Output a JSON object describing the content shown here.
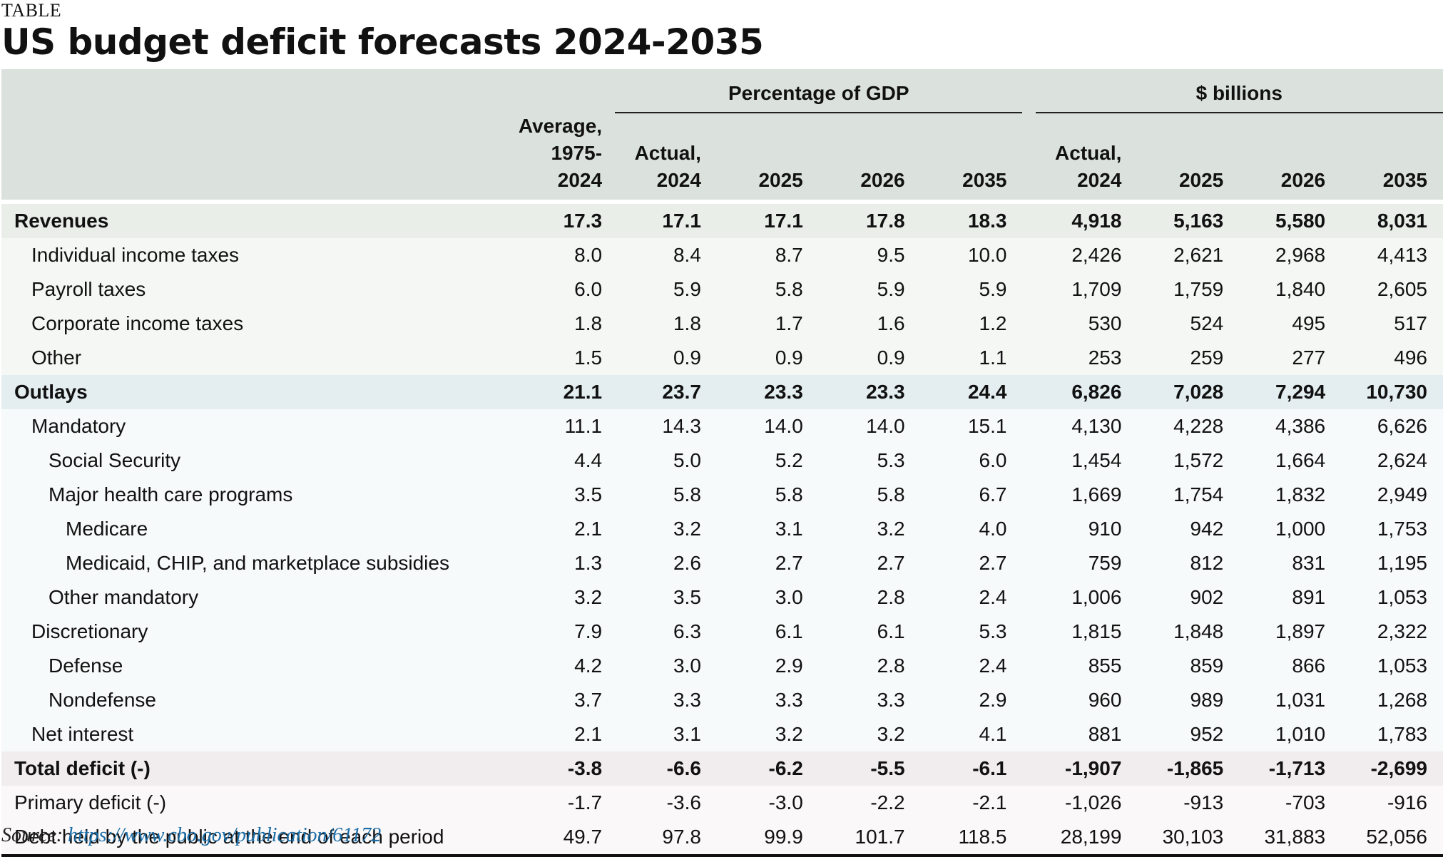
{
  "kicker": "TABLE",
  "title": "US budget deficit forecasts 2024-2035",
  "groups": {
    "pct": "Percentage of GDP",
    "usd": "$ billions"
  },
  "headers": {
    "avg_l1": "Average,",
    "avg_l2": "1975-2024",
    "act_l1": "Actual,",
    "act_l2": "2024",
    "y2025": "2025",
    "y2026": "2026",
    "y2035": "2035"
  },
  "rows": [
    {
      "label": "Revenues",
      "avg": "17.3",
      "p24": "17.1",
      "p25": "17.1",
      "p26": "17.8",
      "p35": "18.3",
      "d24": "4,918",
      "d25": "5,163",
      "d26": "5,580",
      "d35": "8,031"
    },
    {
      "label": "Individual income taxes",
      "avg": "8.0",
      "p24": "8.4",
      "p25": "8.7",
      "p26": "9.5",
      "p35": "10.0",
      "d24": "2,426",
      "d25": "2,621",
      "d26": "2,968",
      "d35": "4,413"
    },
    {
      "label": "Payroll taxes",
      "avg": "6.0",
      "p24": "5.9",
      "p25": "5.8",
      "p26": "5.9",
      "p35": "5.9",
      "d24": "1,709",
      "d25": "1,759",
      "d26": "1,840",
      "d35": "2,605"
    },
    {
      "label": "Corporate income taxes",
      "avg": "1.8",
      "p24": "1.8",
      "p25": "1.7",
      "p26": "1.6",
      "p35": "1.2",
      "d24": "530",
      "d25": "524",
      "d26": "495",
      "d35": "517"
    },
    {
      "label": "Other",
      "avg": "1.5",
      "p24": "0.9",
      "p25": "0.9",
      "p26": "0.9",
      "p35": "1.1",
      "d24": "253",
      "d25": "259",
      "d26": "277",
      "d35": "496"
    },
    {
      "label": "Outlays",
      "avg": "21.1",
      "p24": "23.7",
      "p25": "23.3",
      "p26": "23.3",
      "p35": "24.4",
      "d24": "6,826",
      "d25": "7,028",
      "d26": "7,294",
      "d35": "10,730"
    },
    {
      "label": "Mandatory",
      "avg": "11.1",
      "p24": "14.3",
      "p25": "14.0",
      "p26": "14.0",
      "p35": "15.1",
      "d24": "4,130",
      "d25": "4,228",
      "d26": "4,386",
      "d35": "6,626"
    },
    {
      "label": "Social Security",
      "avg": "4.4",
      "p24": "5.0",
      "p25": "5.2",
      "p26": "5.3",
      "p35": "6.0",
      "d24": "1,454",
      "d25": "1,572",
      "d26": "1,664",
      "d35": "2,624"
    },
    {
      "label": "Major health care programs",
      "avg": "3.5",
      "p24": "5.8",
      "p25": "5.8",
      "p26": "5.8",
      "p35": "6.7",
      "d24": "1,669",
      "d25": "1,754",
      "d26": "1,832",
      "d35": "2,949"
    },
    {
      "label": "Medicare",
      "avg": "2.1",
      "p24": "3.2",
      "p25": "3.1",
      "p26": "3.2",
      "p35": "4.0",
      "d24": "910",
      "d25": "942",
      "d26": "1,000",
      "d35": "1,753"
    },
    {
      "label": "Medicaid, CHIP, and marketplace subsidies",
      "avg": "1.3",
      "p24": "2.6",
      "p25": "2.7",
      "p26": "2.7",
      "p35": "2.7",
      "d24": "759",
      "d25": "812",
      "d26": "831",
      "d35": "1,195"
    },
    {
      "label": "Other mandatory",
      "avg": "3.2",
      "p24": "3.5",
      "p25": "3.0",
      "p26": "2.8",
      "p35": "2.4",
      "d24": "1,006",
      "d25": "902",
      "d26": "891",
      "d35": "1,053"
    },
    {
      "label": "Discretionary",
      "avg": "7.9",
      "p24": "6.3",
      "p25": "6.1",
      "p26": "6.1",
      "p35": "5.3",
      "d24": "1,815",
      "d25": "1,848",
      "d26": "1,897",
      "d35": "2,322"
    },
    {
      "label": "Defense",
      "avg": "4.2",
      "p24": "3.0",
      "p25": "2.9",
      "p26": "2.8",
      "p35": "2.4",
      "d24": "855",
      "d25": "859",
      "d26": "866",
      "d35": "1,053"
    },
    {
      "label": "Nondefense",
      "avg": "3.7",
      "p24": "3.3",
      "p25": "3.3",
      "p26": "3.3",
      "p35": "2.9",
      "d24": "960",
      "d25": "989",
      "d26": "1,031",
      "d35": "1,268"
    },
    {
      "label": "Net interest",
      "avg": "2.1",
      "p24": "3.1",
      "p25": "3.2",
      "p26": "3.2",
      "p35": "4.1",
      "d24": "881",
      "d25": "952",
      "d26": "1,010",
      "d35": "1,783"
    },
    {
      "label": "Total deficit (-)",
      "avg": "-3.8",
      "p24": "-6.6",
      "p25": "-6.2",
      "p26": "-5.5",
      "p35": "-6.1",
      "d24": "-1,907",
      "d25": "-1,865",
      "d26": "-1,713",
      "d35": "-2,699"
    },
    {
      "label": "Primary deficit (-)",
      "avg": "-1.7",
      "p24": "-3.6",
      "p25": "-3.0",
      "p26": "-2.2",
      "p35": "-2.1",
      "d24": "-1,026",
      "d25": "-913",
      "d26": "-703",
      "d35": "-916"
    },
    {
      "label": "Debt held by the public at the end of each period",
      "avg": "49.7",
      "p24": "97.8",
      "p25": "99.9",
      "p26": "101.7",
      "p35": "118.5",
      "d24": "28,199",
      "d25": "30,103",
      "d26": "31,883",
      "d35": "52,056"
    }
  ],
  "source": {
    "prefix": "Source:",
    "link": "https://www.cbo.gov/publication/61172"
  }
}
